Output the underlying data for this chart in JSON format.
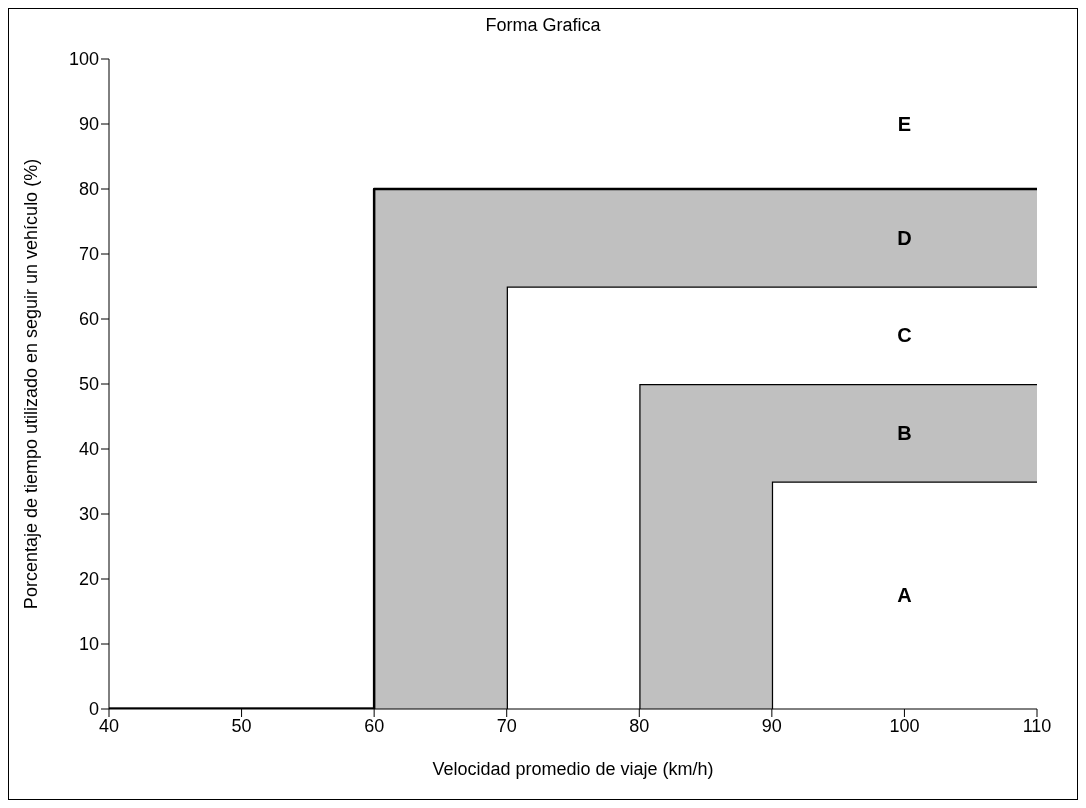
{
  "chart_data": {
    "type": "area",
    "stacked": true,
    "title": "Forma Grafica",
    "xlabel": "Velocidad promedio de viaje (km/h)",
    "ylabel": "Porcentaje de tiempo utilizado en seguir un vehículo (%)",
    "xlim": [
      40,
      110
    ],
    "xticks": [
      40,
      50,
      60,
      70,
      80,
      90,
      100,
      110
    ],
    "ylim": [
      0,
      100
    ],
    "yticks": [
      0,
      10,
      20,
      30,
      40,
      50,
      60,
      70,
      80,
      90,
      100
    ],
    "x": [
      40,
      60,
      60,
      70,
      70,
      80,
      80,
      90,
      90,
      110
    ],
    "series": [
      {
        "color": "#ffffff",
        "values": [
          0,
          0,
          0,
          0,
          0,
          0,
          0,
          0,
          35,
          35
        ]
      },
      {
        "color": "#c0c0c0",
        "values": [
          0,
          0,
          0,
          0,
          0,
          0,
          50,
          50,
          15,
          15
        ]
      },
      {
        "color": "#ffffff",
        "values": [
          0,
          0,
          0,
          0,
          65,
          65,
          15,
          15,
          15,
          15
        ]
      },
      {
        "color": "#c0c0c0",
        "values": [
          0,
          0,
          80,
          80,
          15,
          15,
          15,
          15,
          15,
          15
        ]
      }
    ],
    "annotations": [
      "E",
      "D",
      "C",
      "B",
      "A"
    ]
  }
}
